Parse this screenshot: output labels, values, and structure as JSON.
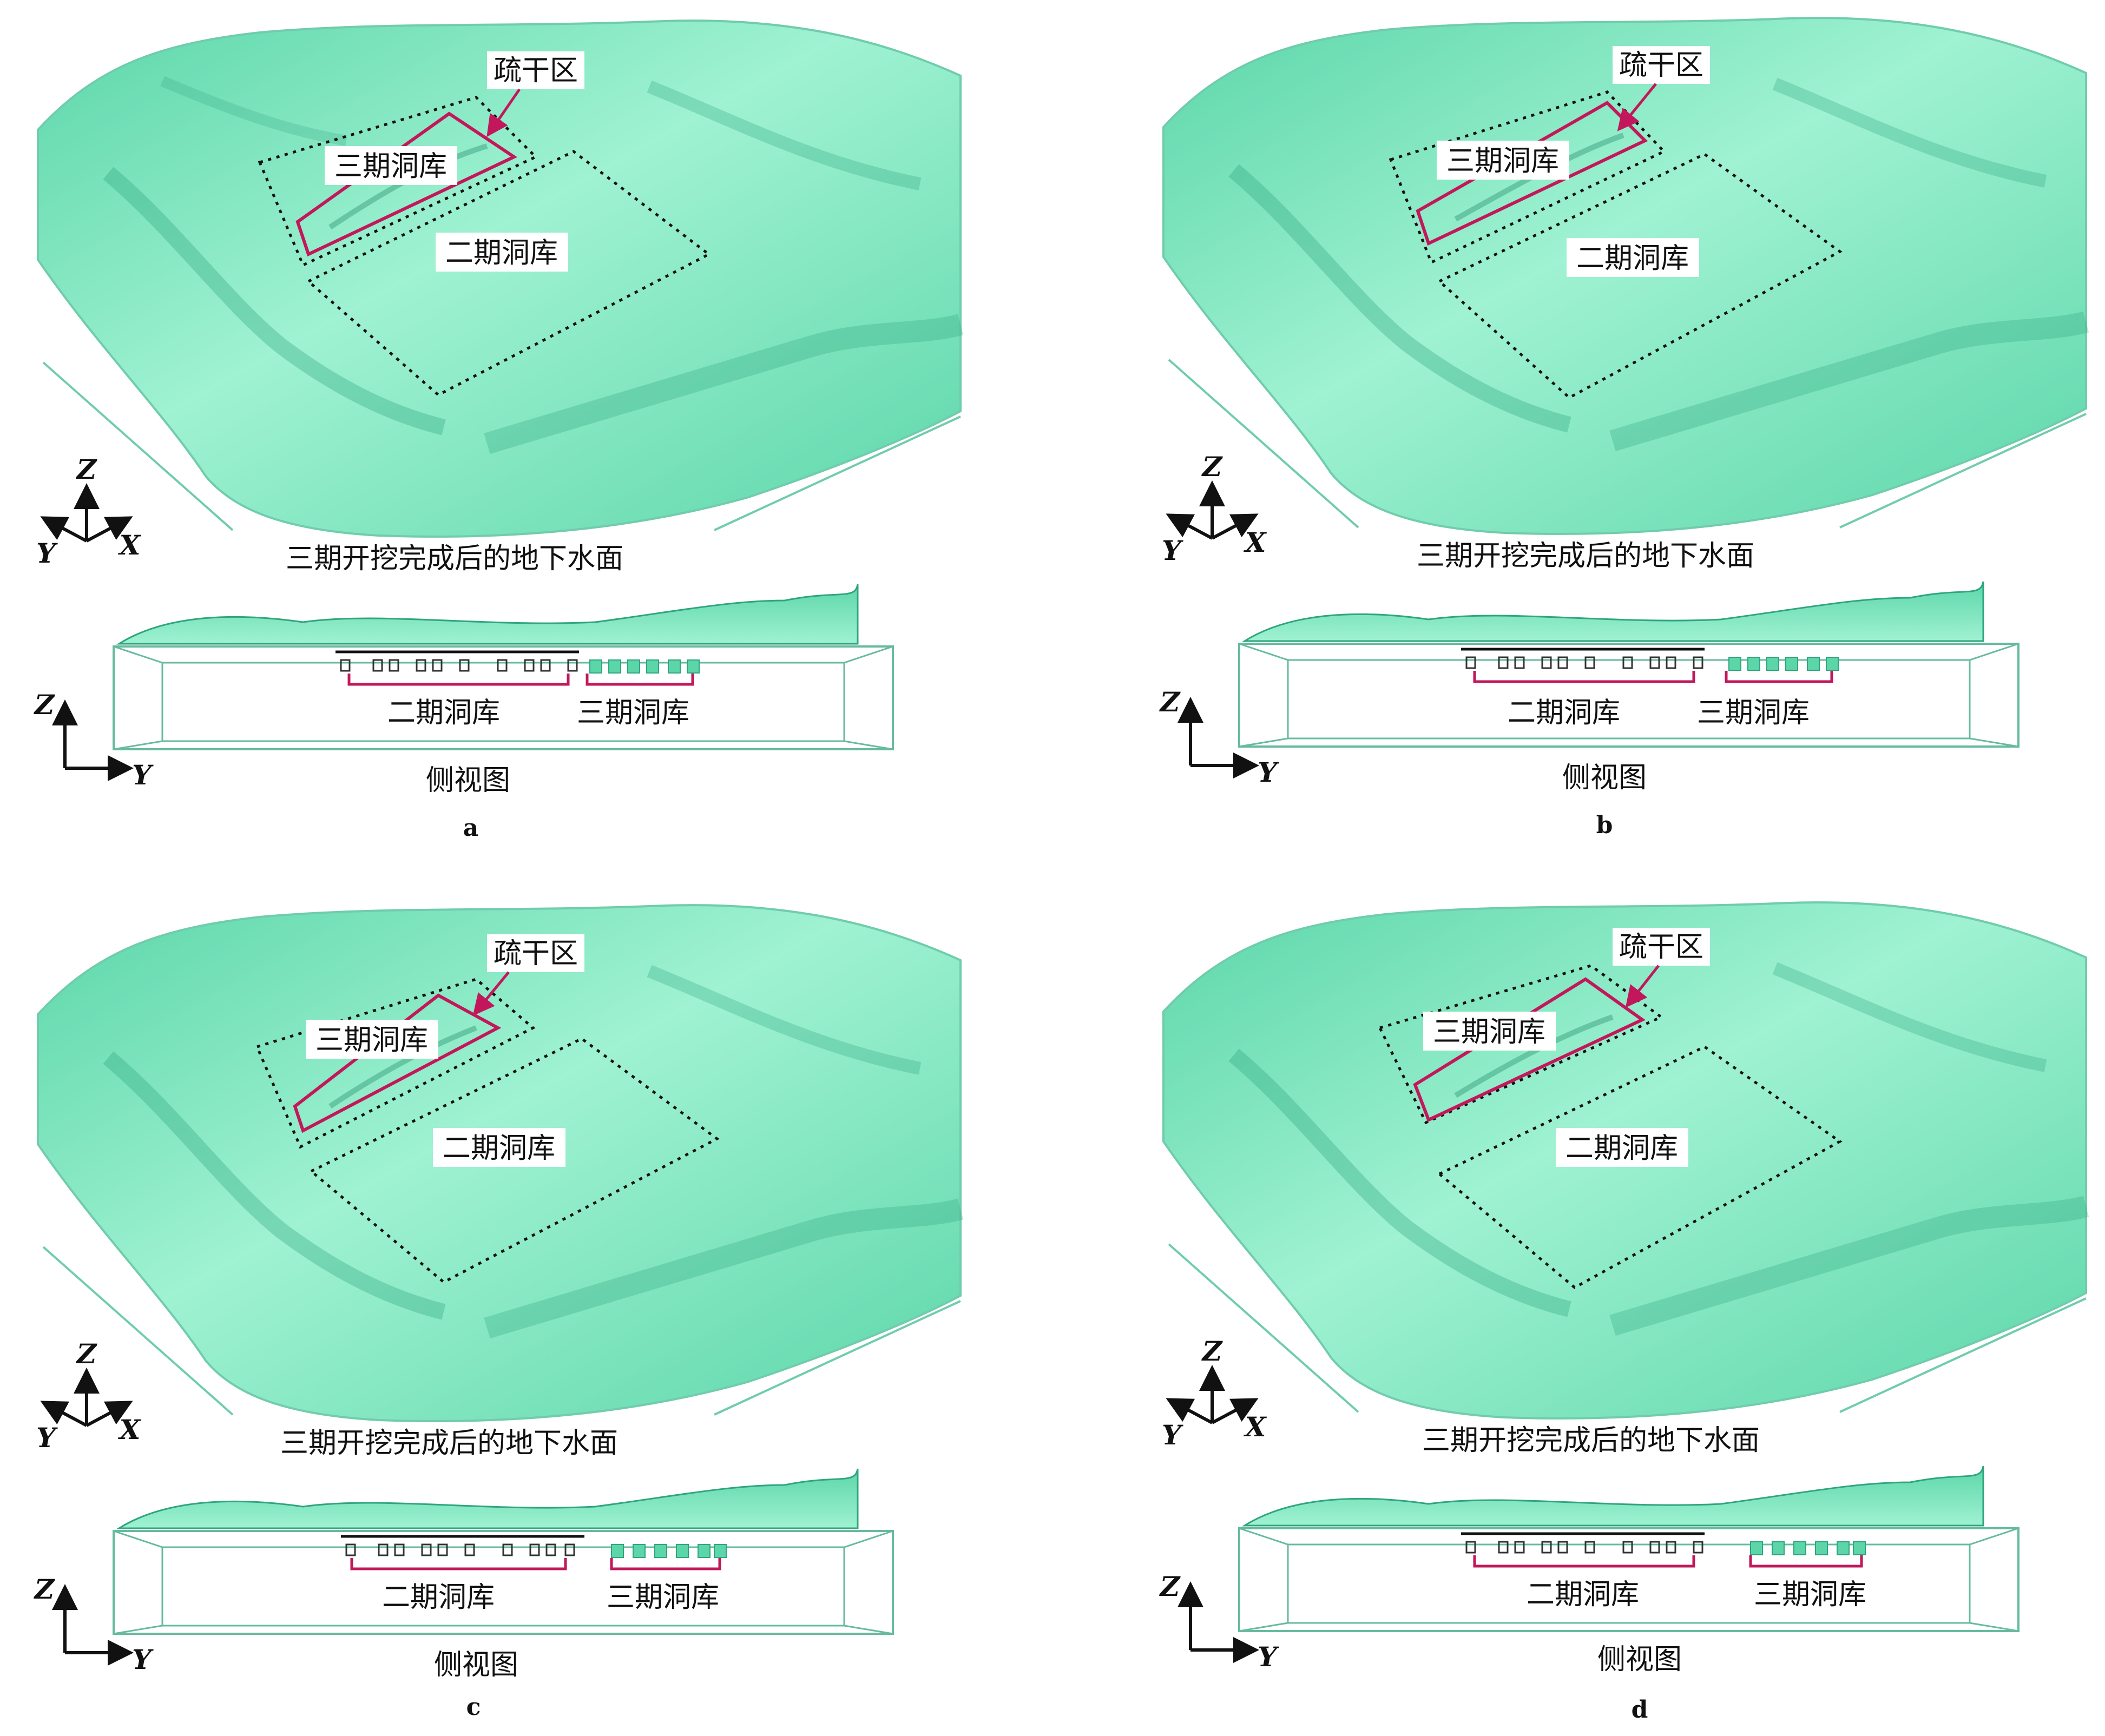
{
  "colors": {
    "terrain_light": "#9ff2d2",
    "terrain_mid": "#5cd6a9",
    "terrain_dark": "#2fa57f",
    "outline": "#70ccad",
    "region_frame": "#c2185b",
    "dotted_frame": "#111111",
    "box_edge": "#66bb9e",
    "label_bg": "#ffffff",
    "text": "#111111"
  },
  "panels": [
    {
      "id": "a",
      "letter": "a",
      "labels": {
        "drain": "疏干区",
        "phase3": "三期洞库",
        "phase2": "二期洞库"
      },
      "caption_3d": "三期开挖完成后的地下水面",
      "side_labels": {
        "phase2": "二期洞库",
        "phase3": "三期洞库"
      },
      "side_caption": "侧视图",
      "axes_3d": {
        "z": "Z",
        "y": "Y",
        "x": "X"
      },
      "axes_2d": {
        "z": "Z",
        "y": "Y"
      }
    },
    {
      "id": "b",
      "letter": "b",
      "labels": {
        "drain": "疏干区",
        "phase3": "三期洞库",
        "phase2": "二期洞库"
      },
      "caption_3d": "三期开挖完成后的地下水面",
      "side_labels": {
        "phase2": "二期洞库",
        "phase3": "三期洞库"
      },
      "side_caption": "侧视图",
      "axes_3d": {
        "z": "Z",
        "y": "Y",
        "x": "X"
      },
      "axes_2d": {
        "z": "Z",
        "y": "Y"
      }
    },
    {
      "id": "c",
      "letter": "c",
      "labels": {
        "drain": "疏干区",
        "phase3": "三期洞库",
        "phase2": "二期洞库"
      },
      "caption_3d": "三期开挖完成后的地下水面",
      "side_labels": {
        "phase2": "二期洞库",
        "phase3": "三期洞库"
      },
      "side_caption": "侧视图",
      "axes_3d": {
        "z": "Z",
        "y": "Y",
        "x": "X"
      },
      "axes_2d": {
        "z": "Z",
        "y": "Y"
      }
    },
    {
      "id": "d",
      "letter": "d",
      "labels": {
        "drain": "疏干区",
        "phase3": "三期洞库",
        "phase2": "二期洞库"
      },
      "caption_3d": "三期开挖完成后的地下水面",
      "side_labels": {
        "phase2": "二期洞库",
        "phase3": "三期洞库"
      },
      "side_caption": "侧视图",
      "axes_3d": {
        "z": "Z",
        "y": "Y",
        "x": "X"
      },
      "axes_2d": {
        "z": "Z",
        "y": "Y"
      }
    }
  ]
}
